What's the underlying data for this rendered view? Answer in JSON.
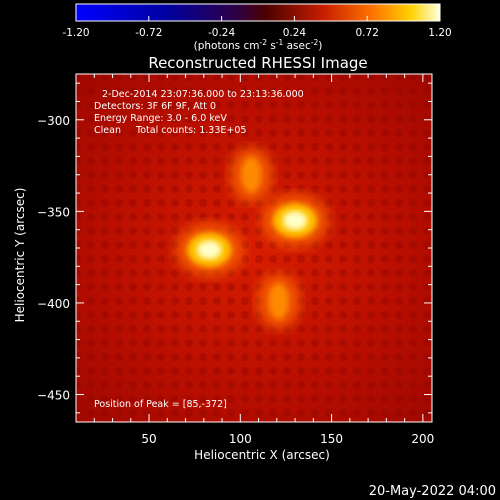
{
  "colorbar": {
    "ticks": [
      "-1.20",
      "-0.72",
      "-0.24",
      "0.24",
      "0.72",
      "1.20"
    ],
    "unit_main": "(photons cm",
    "unit_exp1": "-2",
    "unit_mid": " s",
    "unit_exp2": "-1",
    "unit_tail": " asec",
    "unit_exp3": "-2",
    "unit_close": ")",
    "range": [
      -1.2,
      1.2
    ]
  },
  "chart_data": {
    "type": "heatmap",
    "title": "Reconstructed RHESSI Image",
    "xlabel": "Heliocentric X (arcsec)",
    "ylabel": "Heliocentric Y (arcsec)",
    "xlim": [
      10,
      205
    ],
    "ylim": [
      -465,
      -275
    ],
    "xticks": [
      50,
      100,
      150,
      200
    ],
    "yticks": [
      -300,
      -350,
      -400,
      -450
    ],
    "annotations": [
      "2-Dec-2014 23:07:36.000 to 23:13:36.000",
      "Detectors: 3F 6F 9F, Att 0",
      "Energy Range: 3.0 - 6.0 keV",
      "Clean     Total counts: 1.33E+05"
    ],
    "peak_label": "Position of Peak = [85,-372]",
    "sources": [
      {
        "x": 83,
        "y": -371,
        "amplitude": 1.2
      },
      {
        "x": 130,
        "y": -355,
        "amplitude": 1.1
      },
      {
        "x": 121,
        "y": -399,
        "amplitude": 0.55
      },
      {
        "x": 106,
        "y": -330,
        "amplitude": 0.45
      }
    ]
  },
  "footer": {
    "timestamp": "20-May-2022 04:00"
  }
}
